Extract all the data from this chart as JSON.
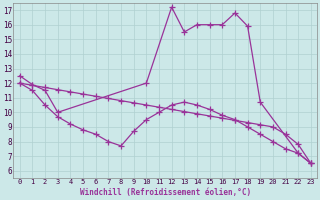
{
  "bg_color": "#cce8e8",
  "grid_color": "#bbdddd",
  "line_color": "#993399",
  "xlabel": "Windchill (Refroidissement éolien,°C)",
  "xlim": [
    -0.5,
    23.5
  ],
  "ylim": [
    5.5,
    17.5
  ],
  "yticks": [
    6,
    7,
    8,
    9,
    10,
    11,
    12,
    13,
    14,
    15,
    16,
    17
  ],
  "xticks": [
    0,
    1,
    2,
    3,
    4,
    5,
    6,
    7,
    8,
    9,
    10,
    11,
    12,
    13,
    14,
    15,
    16,
    17,
    18,
    19,
    20,
    21,
    22,
    23
  ],
  "lines": [
    {
      "x": [
        0,
        1,
        2,
        3,
        10,
        12,
        13,
        14,
        15,
        16,
        17,
        18,
        19,
        22,
        23
      ],
      "y": [
        12.5,
        11.9,
        11.5,
        10.0,
        12.0,
        17.2,
        15.5,
        16.0,
        16.0,
        16.0,
        16.8,
        15.9,
        10.7,
        7.2,
        6.5
      ]
    },
    {
      "x": [
        0,
        1,
        2,
        3,
        4,
        5,
        6,
        7,
        8,
        9,
        10,
        11,
        12,
        13,
        14,
        15,
        16,
        17,
        18,
        19,
        20,
        21,
        22,
        23
      ],
      "y": [
        12.0,
        11.85,
        11.7,
        11.55,
        11.4,
        11.25,
        11.1,
        10.95,
        10.8,
        10.65,
        10.5,
        10.35,
        10.2,
        10.05,
        9.9,
        9.75,
        9.6,
        9.45,
        9.3,
        9.15,
        9.0,
        8.5,
        7.8,
        6.5
      ]
    },
    {
      "x": [
        0,
        1,
        2,
        3,
        4,
        5,
        6,
        7,
        8,
        9,
        10,
        11,
        12,
        13,
        14,
        15,
        16,
        17,
        18,
        19,
        20,
        21,
        22,
        23
      ],
      "y": [
        12.0,
        11.5,
        10.5,
        9.7,
        9.2,
        8.8,
        8.5,
        8.0,
        7.7,
        8.7,
        9.5,
        10.0,
        10.5,
        10.7,
        10.5,
        10.2,
        9.8,
        9.5,
        9.0,
        8.5,
        8.0,
        7.5,
        7.2,
        6.5
      ]
    }
  ]
}
